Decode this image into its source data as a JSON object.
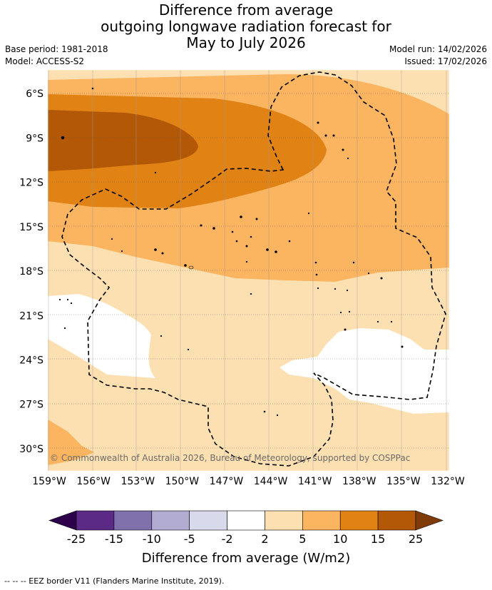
{
  "header": {
    "title_line1": "Difference from average",
    "title_line2": "outgoing longwave radiation forecast for",
    "title_line3": "May to July 2026",
    "base_period": "Base period: 1981-2018",
    "model": "Model: ACCESS-S2",
    "model_run": "Model run: 14/02/2026",
    "issued": "Issued: 17/02/2026"
  },
  "chart_data": {
    "type": "heatmap",
    "title": "Difference from average outgoing longwave radiation forecast for May to July 2026",
    "variable": "Outgoing longwave radiation anomaly",
    "units": "W/m2",
    "x_ticks": [
      "159°W",
      "156°W",
      "153°W",
      "150°W",
      "147°W",
      "144°W",
      "141°W",
      "138°W",
      "135°W",
      "132°W"
    ],
    "x_values": [
      -159,
      -156,
      -153,
      -150,
      -147,
      -144,
      -141,
      -138,
      -135,
      -132
    ],
    "y_ticks": [
      "6°S",
      "9°S",
      "12°S",
      "15°S",
      "18°S",
      "21°S",
      "24°S",
      "27°S",
      "30°S"
    ],
    "y_values": [
      -6,
      -9,
      -12,
      -15,
      -18,
      -21,
      -24,
      -27,
      -30
    ],
    "xlim": [
      -159.1,
      -131.9
    ],
    "ylim": [
      -31.5,
      -4.4
    ],
    "colorbar": {
      "label": "Difference from average (W/m2)",
      "tick_labels": [
        "-25",
        "-15",
        "-10",
        "-5",
        "-2",
        "2",
        "5",
        "10",
        "15",
        "25"
      ],
      "boundaries": [
        -25,
        -15,
        -10,
        -5,
        -2,
        2,
        5,
        10,
        15,
        25
      ],
      "colors": [
        "#5b2a86",
        "#8071ac",
        "#b2abd2",
        "#d8daeb",
        "#ffffff",
        "#fde0b1",
        "#fbb45f",
        "#e08214",
        "#b35806"
      ],
      "under_color": "#2d004b",
      "over_color": "#7f3b08"
    },
    "regions": [
      {
        "level": "2 to 5",
        "color": "#fde0b1",
        "description": "southern and eastern edges of domain"
      },
      {
        "level": "5 to 10",
        "color": "#fbb45f",
        "description": "broad band across 5°S to 18°S"
      },
      {
        "level": "10 to 15",
        "color": "#e08214",
        "description": "band 7°S to 13°S, 159°W to 141°W"
      },
      {
        "level": "15 to 25",
        "color": "#b35806",
        "description": "core near 9°S, 159°W to 149°W"
      },
      {
        "level": "-2 to 2",
        "color": "#ffffff",
        "description": "near 22°S, 159°W to 152°W and 22-26°S, 143°W to 132°W"
      }
    ],
    "overlay": "EEZ border (dashed)"
  },
  "copyright": "© Commonwealth of Australia 2026, Bureau of Meteorology, supported by COSPPac",
  "footnote": "--  --  -- EEZ border V11 (Flanders Marine Institute, 2019)."
}
